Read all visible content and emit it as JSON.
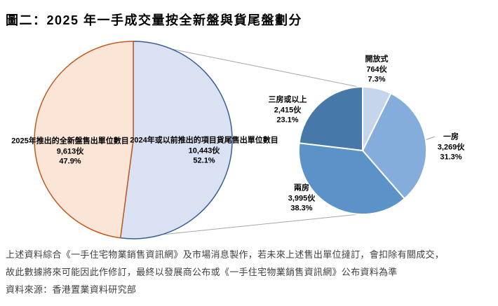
{
  "title": "圖二：2025 年一手成交量按全新盤與貨尾盤劃分",
  "colors": {
    "background": "#ffffff",
    "connector_line": "#a6a6a6",
    "main_new_fill": "#FBE5D6",
    "main_new_stroke": "#BF5B21",
    "main_leftover_fill": "#DAE1F2",
    "main_leftover_stroke": "#3A5E99",
    "breakdown_open_plan": "#C4D5EC",
    "breakdown_one_bedroom": "#84ADDC",
    "breakdown_two_bedroom": "#5B92C8",
    "breakdown_three_plus": "#4678A8"
  },
  "chart_data": [
    {
      "type": "pie",
      "name": "main-pie",
      "title": "2025 年一手成交量按全新盤與貨尾盤劃分",
      "units_suffix": "伙",
      "slices": [
        {
          "id": "leftover-2024",
          "label": "2024年或以前推出的項目貨尾售出單位數目",
          "value": 10443,
          "units": "10,443伙",
          "pct": "52.1%",
          "fill": "#DAE1F2",
          "stroke": "#3A5E99"
        },
        {
          "id": "new-2025",
          "label": "2025年推出的全新盤售出單位數目",
          "value": 9613,
          "units": "9,613伙",
          "pct": "47.9%",
          "fill": "#FBE5D6",
          "stroke": "#BF5B21"
        }
      ]
    },
    {
      "type": "pie",
      "name": "breakdown-pie-of-leftover",
      "units_suffix": "伙",
      "slices": [
        {
          "id": "open-plan",
          "label": "開放式",
          "value": 764,
          "units": "764伙",
          "pct": "7.3%",
          "fill": "#C4D5EC",
          "stroke": "#FFFFFF"
        },
        {
          "id": "one-bedroom",
          "label": "一房",
          "value": 3269,
          "units": "3,269伙",
          "pct": "31.3%",
          "fill": "#84ADDC",
          "stroke": "#FFFFFF"
        },
        {
          "id": "two-bedroom",
          "label": "兩房",
          "value": 3995,
          "units": "3,995伙",
          "pct": "38.3%",
          "fill": "#5B92C8",
          "stroke": "#FFFFFF"
        },
        {
          "id": "three-plus-bedroom",
          "label": "三房或以上",
          "value": 2415,
          "units": "2,415伙",
          "pct": "23.1%",
          "fill": "#4678A8",
          "stroke": "#FFFFFF"
        }
      ]
    }
  ],
  "footnotes": [
    "上述資料綜合《一手住宅物業銷售資訊網》及市場消息製作，若未來上述售出單位撻訂，會扣除有關成交，",
    "故此數據將來可能因此作修訂，最終以發展商公布或《一手住宅物業銷售資訊網》公布資料為準",
    "資料來源：香港置業資料研究部"
  ]
}
